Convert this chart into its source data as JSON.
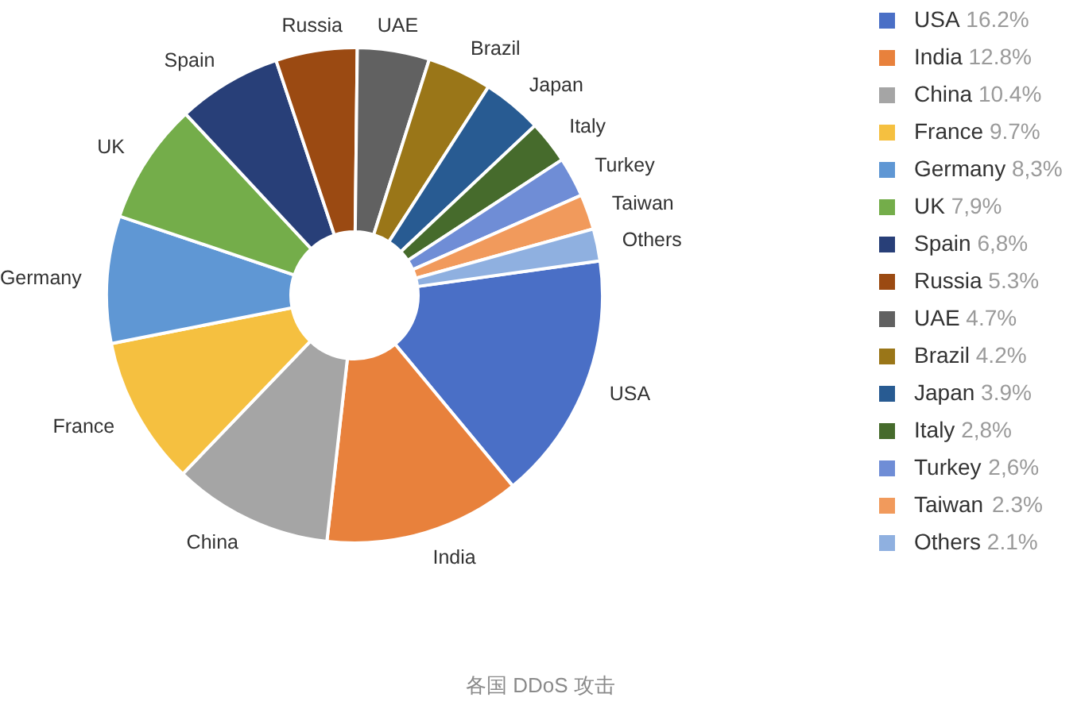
{
  "chart_data": {
    "type": "donut",
    "categories": [
      "USA",
      "India",
      "China",
      "France",
      "Germany",
      "UK",
      "Spain",
      "Russia",
      "UAE",
      "Brazil",
      "Japan",
      "Italy",
      "Turkey",
      "Taiwan",
      "Others"
    ],
    "values": [
      16.2,
      12.8,
      10.4,
      9.7,
      8.3,
      7.9,
      6.8,
      5.3,
      4.7,
      4.2,
      3.9,
      2.8,
      2.6,
      2.3,
      2.1
    ],
    "value_labels": [
      "16.2%",
      "12.8%",
      "10.4%",
      "9.7%",
      "8,3%",
      "7,9%",
      "6,8%",
      "5.3%",
      "4.7%",
      "4.2%",
      "3.9%",
      "2,8%",
      "2,6%",
      "2.3%",
      "2.1%"
    ],
    "colors": [
      "#4a6fc6",
      "#e8813c",
      "#a5a5a5",
      "#f5c040",
      "#5f97d4",
      "#74ad4a",
      "#283f78",
      "#9b4a12",
      "#616161",
      "#9a7618",
      "#285b92",
      "#466b2c",
      "#6f8dd6",
      "#f19a5c",
      "#8fb0e0"
    ],
    "legend": "right",
    "annotations": [
      "各国 DDoS 攻击"
    ]
  }
}
